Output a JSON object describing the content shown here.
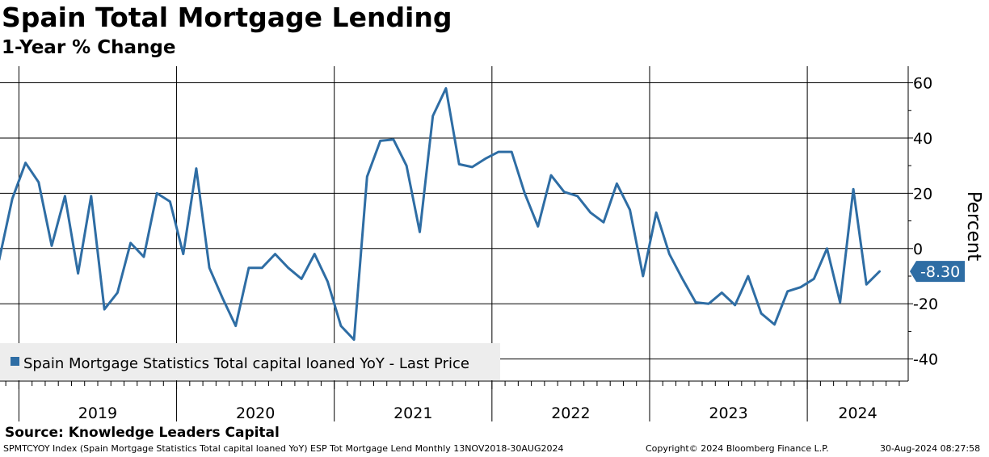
{
  "header": {
    "title": "Spain Total Mortgage Lending",
    "subtitle": "1-Year % Change"
  },
  "source": "Source: Knowledge Leaders Capital",
  "footer": {
    "ticker_info": "SPMTCYOY Index (Spain Mortgage Statistics Total capital loaned YoY) ESP Tot Mortgage Lend  Monthly 13NOV2018-30AUG2024",
    "copyright": "Copyright© 2024 Bloomberg Finance L.P.",
    "timestamp": "30-Aug-2024 08:27:58"
  },
  "colors": {
    "line": "#2e6da4",
    "grid": "#000000",
    "legend_bg": "#ededed",
    "last_price_bg": "#2e6da4",
    "last_price_text": "#ffffff"
  },
  "chart_data": {
    "type": "line",
    "title": "Spain Total Mortgage Lending",
    "subtitle": "1-Year % Change",
    "xlabel": "",
    "ylabel": "Percent",
    "ylim": [
      -48,
      66
    ],
    "y_ticks": [
      60,
      40,
      20,
      0,
      -20,
      -40
    ],
    "y_tick_labels": [
      "60",
      "40",
      "20",
      "0",
      "-20",
      "-40"
    ],
    "x_range": [
      2018.88,
      2024.64
    ],
    "x_year_boundaries": [
      2019,
      2020,
      2021,
      2022,
      2023,
      2024
    ],
    "year_labels": [
      {
        "label": "2019",
        "center": 2019.5
      },
      {
        "label": "2020",
        "center": 2020.5
      },
      {
        "label": "2021",
        "center": 2021.5
      },
      {
        "label": "2022",
        "center": 2022.5
      },
      {
        "label": "2023",
        "center": 2023.5
      },
      {
        "label": "2024",
        "center": 2024.32
      }
    ],
    "legend": "Spain Mortgage Statistics Total capital loaned YoY - Last Price",
    "legend_position": "bottom-left",
    "last_price_label": "-8.30",
    "last_value": -8.3,
    "grid": true,
    "series": [
      {
        "name": "Spain Mortgage Statistics Total capital loaned YoY - Last Price",
        "x": [
          2018.875,
          2018.958,
          2019.042,
          2019.125,
          2019.208,
          2019.292,
          2019.375,
          2019.458,
          2019.542,
          2019.625,
          2019.708,
          2019.792,
          2019.875,
          2019.958,
          2020.042,
          2020.125,
          2020.208,
          2020.292,
          2020.375,
          2020.458,
          2020.542,
          2020.625,
          2020.708,
          2020.792,
          2020.875,
          2020.958,
          2021.042,
          2021.125,
          2021.208,
          2021.292,
          2021.375,
          2021.458,
          2021.542,
          2021.625,
          2021.708,
          2021.792,
          2021.875,
          2021.958,
          2022.042,
          2022.125,
          2022.208,
          2022.292,
          2022.375,
          2022.458,
          2022.542,
          2022.625,
          2022.708,
          2022.792,
          2022.875,
          2022.958,
          2023.042,
          2023.125,
          2023.208,
          2023.292,
          2023.375,
          2023.458,
          2023.542,
          2023.625,
          2023.708,
          2023.792,
          2023.875,
          2023.958,
          2024.042,
          2024.125,
          2024.208,
          2024.292,
          2024.375,
          2024.458
        ],
        "values": [
          -4,
          18,
          31,
          24,
          1,
          19,
          -9,
          19,
          -22,
          -16,
          2,
          -3,
          20,
          17,
          -2,
          29,
          -7,
          -18,
          -28,
          -7,
          -7,
          -2,
          -7,
          -11,
          -2,
          -12,
          -28,
          -33,
          26,
          39,
          39.5,
          30,
          6,
          48,
          58,
          30.5,
          29.5,
          32.5,
          35,
          35,
          20,
          8,
          26.5,
          20.5,
          19,
          13,
          9.5,
          23.5,
          14,
          -10,
          13,
          -2,
          -11,
          -19.5,
          -20,
          -16,
          -20.5,
          -10,
          -23.5,
          -27.5,
          -15.5,
          -14,
          -11,
          0,
          -19.5,
          21.5,
          -13,
          -8.3
        ]
      }
    ]
  }
}
